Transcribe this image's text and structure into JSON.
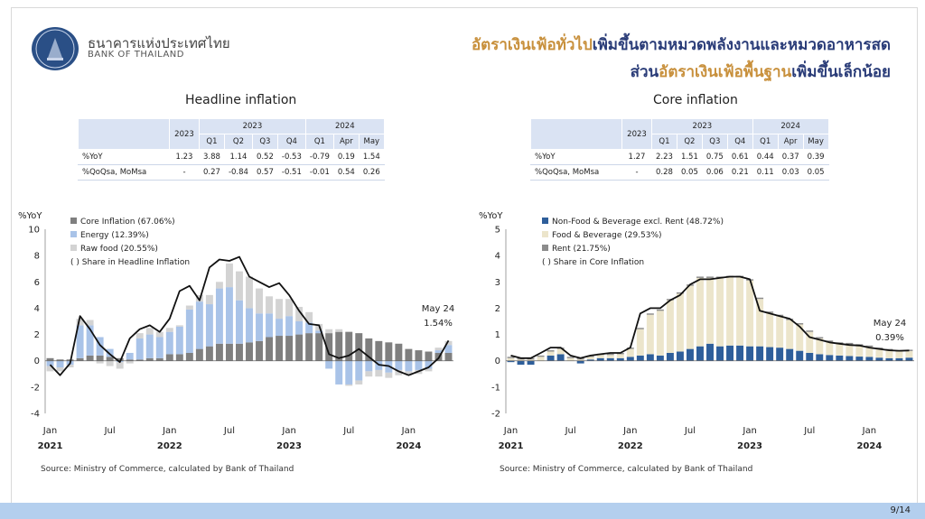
{
  "header": {
    "logo_thai": "ธนาคารแห่งประเทศไทย",
    "logo_en": "BANK OF THAILAND",
    "headline_1a": "อัตราเงินเฟ้อทั่วไป",
    "headline_1b": "เพิ่มขึ้นตามหมวดพลังงานและหมวดอาหารสด",
    "headline_2a": "ส่วน",
    "headline_2b": "อัตราเงินเฟ้อพื้นฐาน",
    "headline_2c": "เพิ่มขึ้นเล็กน้อย"
  },
  "headline": {
    "title": "Headline inflation",
    "table": {
      "col_2023": "2023",
      "grp_2023": "2023",
      "grp_2024": "2024",
      "cols": [
        "Q1",
        "Q2",
        "Q3",
        "Q4",
        "Q1",
        "Apr",
        "May"
      ],
      "rows": [
        {
          "label": "%YoY",
          "cells": [
            "1.23",
            "3.88",
            "1.14",
            "0.52",
            "-0.53",
            "-0.79",
            "0.19",
            "1.54"
          ]
        },
        {
          "label": "%QoQsa, MoMsa",
          "cells": [
            "-",
            "0.27",
            "-0.84",
            "0.57",
            "-0.51",
            "-0.01",
            "0.54",
            "0.26"
          ]
        }
      ]
    },
    "source": "Source: Ministry of Commerce, calculated by Bank of Thailand"
  },
  "core": {
    "title": "Core inflation",
    "table": {
      "col_2023": "2023",
      "grp_2023": "2023",
      "grp_2024": "2024",
      "cols": [
        "Q1",
        "Q2",
        "Q3",
        "Q4",
        "Q1",
        "Apr",
        "May"
      ],
      "rows": [
        {
          "label": "%YoY",
          "cells": [
            "1.27",
            "2.23",
            "1.51",
            "0.75",
            "0.61",
            "0.44",
            "0.37",
            "0.39"
          ]
        },
        {
          "label": "%QoQsa, MoMsa",
          "cells": [
            "-",
            "0.28",
            "0.05",
            "0.06",
            "0.21",
            "0.11",
            "0.03",
            "0.05"
          ]
        }
      ]
    },
    "source": "Source: Ministry of Commerce, calculated by Bank of Thailand"
  },
  "page_number": "9/14",
  "chart_data": [
    {
      "type": "bar",
      "stacked": true,
      "ylabel": "%YoY",
      "ylim": [
        -4,
        10
      ],
      "yticks": [
        -4,
        -2,
        0,
        2,
        4,
        6,
        8,
        10
      ],
      "x_ticks": [
        {
          "i": 0,
          "m": "Jan",
          "y": "2021"
        },
        {
          "i": 6,
          "m": "Jul",
          "y": ""
        },
        {
          "i": 12,
          "m": "Jan",
          "y": "2022"
        },
        {
          "i": 18,
          "m": "Jul",
          "y": ""
        },
        {
          "i": 24,
          "m": "Jan",
          "y": "2023"
        },
        {
          "i": 30,
          "m": "Jul",
          "y": ""
        },
        {
          "i": 36,
          "m": "Jan",
          "y": "2024"
        }
      ],
      "n": 41,
      "legend": [
        "Core Inflation (67.06%)",
        "Energy (12.39%)",
        "Raw food (20.55%)",
        "( ) Share in Headline Inflation"
      ],
      "colors": [
        "#7f7f7f",
        "#a9c3e8",
        "#d3d3d3"
      ],
      "annotation": [
        "May 24",
        "1.54%"
      ],
      "series": [
        {
          "name": "Core Inflation",
          "values": [
            0.2,
            0.1,
            0.1,
            0.2,
            0.4,
            0.4,
            0.3,
            0.2,
            0.1,
            0.1,
            0.2,
            0.2,
            0.5,
            0.5,
            0.6,
            0.9,
            1.1,
            1.3,
            1.3,
            1.3,
            1.4,
            1.5,
            1.8,
            1.9,
            1.9,
            2.0,
            2.1,
            2.1,
            2.1,
            2.2,
            2.2,
            2.1,
            1.7,
            1.5,
            1.4,
            1.3,
            0.9,
            0.8,
            0.7,
            0.6,
            0.6
          ]
        },
        {
          "name": "Energy",
          "values": [
            -0.4,
            -0.5,
            -0.3,
            2.5,
            2.3,
            1.4,
            0.6,
            -0.1,
            0.5,
            1.6,
            1.8,
            1.6,
            1.7,
            2.1,
            3.3,
            3.6,
            3.2,
            4.2,
            4.3,
            3.3,
            2.6,
            2.1,
            1.8,
            1.3,
            1.5,
            1.0,
            0.8,
            0.2,
            -0.6,
            -1.8,
            -1.8,
            -1.5,
            -0.8,
            -0.7,
            -0.9,
            -0.7,
            -0.8,
            -0.7,
            -0.6,
            0.2,
            0.6
          ]
        },
        {
          "name": "Raw food",
          "values": [
            -0.4,
            -0.3,
            -0.2,
            0.5,
            0.4,
            -0.2,
            -0.4,
            -0.5,
            -0.2,
            0.4,
            0.5,
            0.4,
            0.3,
            0.1,
            0.3,
            0.5,
            0.7,
            0.5,
            1.8,
            2.2,
            2.4,
            1.9,
            1.3,
            1.5,
            1.3,
            1.1,
            0.8,
            0.5,
            0.3,
            0.2,
            -0.1,
            -0.3,
            -0.4,
            -0.5,
            -0.4,
            -0.4,
            -0.3,
            -0.3,
            -0.2,
            0.2,
            0.3
          ]
        }
      ],
      "line": {
        "name": "Headline",
        "values": [
          -0.3,
          -1.1,
          -0.2,
          3.4,
          2.4,
          1.2,
          0.5,
          -0.1,
          1.7,
          2.4,
          2.7,
          2.2,
          3.2,
          5.3,
          5.7,
          4.6,
          7.1,
          7.7,
          7.6,
          7.9,
          6.4,
          6.0,
          5.6,
          5.9,
          5.0,
          3.8,
          2.8,
          2.7,
          0.5,
          0.2,
          0.4,
          0.9,
          0.3,
          -0.3,
          -0.4,
          -0.8,
          -1.1,
          -0.8,
          -0.5,
          0.2,
          1.54
        ]
      }
    },
    {
      "type": "bar",
      "stacked": true,
      "ylabel": "%YoY",
      "ylim": [
        -2,
        5
      ],
      "yticks": [
        -2,
        -1,
        0,
        1,
        2,
        3,
        4,
        5
      ],
      "x_ticks": [
        {
          "i": 0,
          "m": "Jan",
          "y": "2021"
        },
        {
          "i": 6,
          "m": "Jul",
          "y": ""
        },
        {
          "i": 12,
          "m": "Jan",
          "y": "2022"
        },
        {
          "i": 18,
          "m": "Jul",
          "y": ""
        },
        {
          "i": 24,
          "m": "Jan",
          "y": "2023"
        },
        {
          "i": 30,
          "m": "Jul",
          "y": ""
        },
        {
          "i": 36,
          "m": "Jan",
          "y": "2024"
        }
      ],
      "n": 41,
      "legend": [
        "Non-Food & Beverage excl. Rent (48.72%)",
        "Food & Beverage (29.53%)",
        "Rent (21.75%)",
        "( ) Share in Core Inflation"
      ],
      "colors": [
        "#2e5e9a",
        "#ece5cb",
        "#8c8c8c"
      ],
      "annotation": [
        "May 24",
        "0.39%"
      ],
      "series": [
        {
          "name": "Non-Food & Beverage excl. Rent",
          "values": [
            -0.05,
            -0.15,
            -0.15,
            0.0,
            0.2,
            0.25,
            0.0,
            -0.1,
            0.05,
            0.1,
            0.1,
            0.1,
            0.15,
            0.2,
            0.25,
            0.2,
            0.3,
            0.35,
            0.45,
            0.55,
            0.65,
            0.55,
            0.58,
            0.58,
            0.55,
            0.55,
            0.52,
            0.5,
            0.45,
            0.38,
            0.3,
            0.25,
            0.22,
            0.2,
            0.18,
            0.16,
            0.15,
            0.12,
            0.1,
            0.1,
            0.12
          ]
        },
        {
          "name": "Food & Beverage",
          "values": [
            0.1,
            0.05,
            0.05,
            0.15,
            0.15,
            0.2,
            0.1,
            0.05,
            0.1,
            0.12,
            0.12,
            0.15,
            0.3,
            1.0,
            1.5,
            1.7,
            2.0,
            2.2,
            2.4,
            2.6,
            2.5,
            2.6,
            2.6,
            2.6,
            2.5,
            1.8,
            1.3,
            1.2,
            1.1,
            1.0,
            0.8,
            0.6,
            0.5,
            0.45,
            0.45,
            0.42,
            0.38,
            0.33,
            0.3,
            0.25,
            0.25
          ]
        },
        {
          "name": "Rent",
          "values": [
            0.05,
            0.05,
            0.05,
            0.05,
            0.05,
            0.05,
            0.05,
            0.05,
            0.05,
            0.05,
            0.05,
            0.05,
            0.05,
            0.05,
            0.05,
            0.05,
            0.05,
            0.05,
            0.05,
            0.05,
            0.05,
            0.05,
            0.05,
            0.05,
            0.05,
            0.05,
            0.05,
            0.05,
            0.05,
            0.05,
            0.05,
            0.05,
            0.05,
            0.05,
            0.05,
            0.05,
            0.05,
            0.05,
            0.05,
            0.05,
            0.05
          ]
        }
      ],
      "line": {
        "name": "Core",
        "values": [
          0.2,
          0.1,
          0.1,
          0.3,
          0.5,
          0.5,
          0.2,
          0.1,
          0.2,
          0.25,
          0.3,
          0.3,
          0.5,
          1.8,
          2.0,
          2.0,
          2.3,
          2.5,
          2.9,
          3.1,
          3.1,
          3.15,
          3.2,
          3.2,
          3.1,
          1.9,
          1.8,
          1.7,
          1.6,
          1.3,
          0.9,
          0.8,
          0.7,
          0.65,
          0.6,
          0.58,
          0.5,
          0.45,
          0.4,
          0.38,
          0.39
        ]
      }
    }
  ]
}
